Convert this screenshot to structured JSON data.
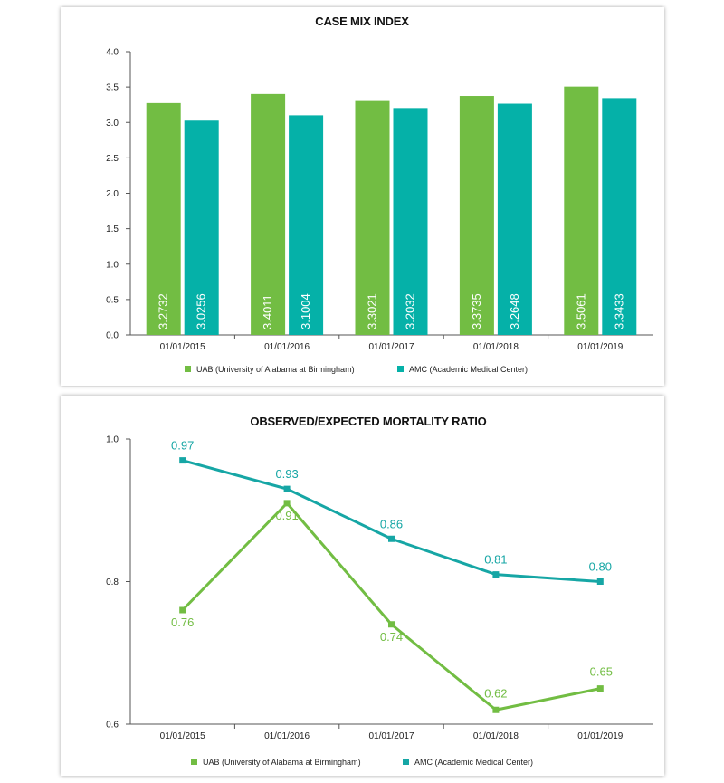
{
  "chart_data": [
    {
      "type": "bar",
      "title": "CASE MIX INDEX",
      "categories": [
        "01/01/2015",
        "01/01/2016",
        "01/01/2017",
        "01/01/2018",
        "01/01/2019"
      ],
      "series": [
        {
          "name": "UAB (University of Alabama at Birmingham)",
          "color": "#72bd43",
          "values": [
            3.2732,
            3.4011,
            3.3021,
            3.3735,
            3.5061
          ],
          "labels": [
            "3.2732",
            "3.4011",
            "3.3021",
            "3.3735",
            "3.5061"
          ]
        },
        {
          "name": "AMC (Academic Medical Center)",
          "color": "#05b1a8",
          "values": [
            3.0256,
            3.1004,
            3.2032,
            3.2648,
            3.3433
          ],
          "labels": [
            "3.0256",
            "3.1004",
            "3.2032",
            "3.2648",
            "3.3433"
          ]
        }
      ],
      "ylim": [
        0,
        4.0
      ],
      "yticks": [
        "0.0",
        "0.5",
        "1.0",
        "1.5",
        "2.0",
        "2.5",
        "3.0",
        "3.5",
        "4.0"
      ],
      "legend_position": "bottom",
      "grid": false
    },
    {
      "type": "line",
      "title": "OBSERVED/EXPECTED MORTALITY RATIO",
      "categories": [
        "01/01/2015",
        "01/01/2016",
        "01/01/2017",
        "01/01/2018",
        "01/01/2019"
      ],
      "series": [
        {
          "name": "UAB (University of Alabama at Birmingham)",
          "color": "#72bd43",
          "values": [
            0.76,
            0.91,
            0.74,
            0.62,
            0.65
          ],
          "labels": [
            "0.76",
            "0.91",
            "0.74",
            "0.62",
            "0.65"
          ]
        },
        {
          "name": "AMC (Academic Medical Center)",
          "color": "#16a6a5",
          "values": [
            0.97,
            0.93,
            0.86,
            0.81,
            0.8
          ],
          "labels": [
            "0.97",
            "0.93",
            "0.86",
            "0.81",
            "0.80"
          ]
        }
      ],
      "ylim": [
        0.6,
        1.0
      ],
      "yticks": [
        "0.6",
        "0.8",
        "1.0"
      ],
      "legend_position": "bottom",
      "grid": false
    }
  ]
}
